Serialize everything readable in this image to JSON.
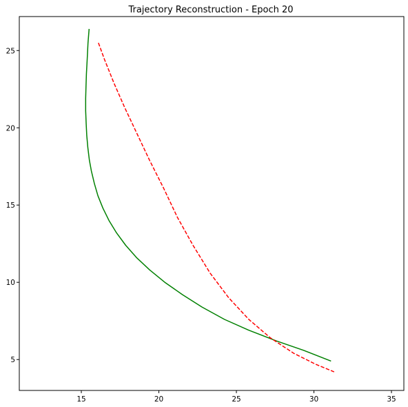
{
  "chart_data": {
    "type": "line",
    "title": "Trajectory Reconstruction - Epoch 20",
    "xlabel": "",
    "ylabel": "",
    "xlim": [
      11,
      35.8
    ],
    "ylim": [
      3.0,
      27.2
    ],
    "xticks": [
      15,
      20,
      25,
      30,
      35
    ],
    "yticks": [
      5,
      10,
      15,
      20,
      25
    ],
    "grid": false,
    "legend": "none",
    "series": [
      {
        "color": "#008000",
        "linestyle": "solid",
        "x": [
          15.5,
          15.43,
          15.38,
          15.33,
          15.3,
          15.28,
          15.28,
          15.31,
          15.35,
          15.42,
          15.52,
          15.65,
          15.84,
          16.07,
          16.39,
          16.78,
          17.27,
          17.86,
          18.56,
          19.41,
          20.38,
          21.52,
          22.78,
          24.23,
          25.8,
          27.59,
          29.33,
          31.1
        ],
        "y": [
          26.4,
          25.5,
          24.5,
          23.5,
          22.7,
          21.9,
          21.1,
          20.3,
          19.5,
          18.7,
          17.9,
          17.2,
          16.4,
          15.6,
          14.8,
          14.0,
          13.2,
          12.4,
          11.6,
          10.8,
          10.0,
          9.2,
          8.4,
          7.6,
          6.9,
          6.2,
          5.6,
          4.9
        ]
      },
      {
        "color": "#ff0000",
        "linestyle": "dashed",
        "x": [
          16.1,
          16.5,
          17.1,
          17.8,
          18.6,
          19.4,
          20.3,
          21.2,
          22.2,
          23.3,
          24.5,
          25.8,
          27.2,
          28.7,
          30.1,
          31.3
        ],
        "y": [
          25.5,
          24.4,
          22.9,
          21.3,
          19.6,
          17.9,
          16.1,
          14.2,
          12.4,
          10.6,
          9.0,
          7.6,
          6.4,
          5.4,
          4.7,
          4.2
        ]
      }
    ]
  }
}
